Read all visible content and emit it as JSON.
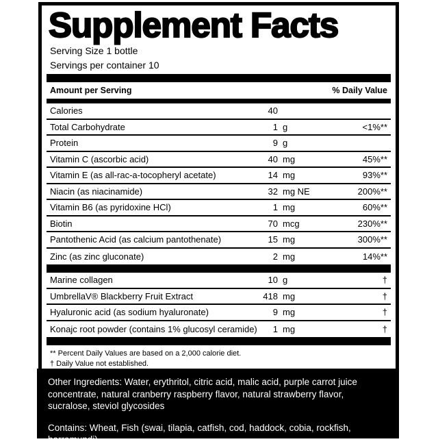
{
  "label": {
    "title": "Supplement Facts",
    "serving_size": "Serving Size 1 bottle",
    "servings_per_container": "Servings per container 10",
    "columns": {
      "amount": "Amount per Serving",
      "daily_value": "% Daily Value"
    },
    "rows": [
      {
        "name": "Calories",
        "amount": "40",
        "unit": "",
        "dv": ""
      },
      {
        "name": "Total Carbohydrate",
        "amount": "1",
        "unit": "g",
        "dv": "<1%**"
      },
      {
        "name": "Protein",
        "amount": "9",
        "unit": "g",
        "dv": ""
      },
      {
        "name": "Vitamin C (ascorbic acid)",
        "amount": "40",
        "unit": "mg",
        "dv": "45%**"
      },
      {
        "name": "Vitamin E (as all-rac-a-tocopheryl acetate)",
        "amount": "14",
        "unit": "mg",
        "dv": "93%**"
      },
      {
        "name": "Niacin (as niacinamide)",
        "amount": "32",
        "unit": "mg NE",
        "dv": "200%**"
      },
      {
        "name": "Vitamin B6 (as pyridoxine HCl)",
        "amount": "1",
        "unit": "mg",
        "dv": "60%**"
      },
      {
        "name": "Biotin",
        "amount": "70",
        "unit": "mcg",
        "dv": "230%**"
      },
      {
        "name": "Pantothenic Acid (as calcium pantothenate)",
        "amount": "15",
        "unit": "mg",
        "dv": "300%**"
      },
      {
        "name": "Zinc (as zinc gluconate)",
        "amount": "2",
        "unit": "mg",
        "dv": "14%**"
      }
    ],
    "rows2": [
      {
        "name": "Marine collagen",
        "amount": "10",
        "unit": "g",
        "dv": "†"
      },
      {
        "name": "UmbrellaV® Blackberry Fruit Extract",
        "amount": "418",
        "unit": "mg",
        "dv": "†"
      },
      {
        "name": "Hyaluronic acid (as sodium hyaluronate)",
        "amount": "9",
        "unit": "mg",
        "dv": "†"
      },
      {
        "name": "Konajc root powder (contains 1% glucosyl ceramide)",
        "amount": "1",
        "unit": "mg",
        "dv": "†"
      }
    ],
    "footnotes": [
      "** Percent Daily Values are based on a 2,000 calorie diet.",
      "† Daily Value not established."
    ]
  },
  "footer": {
    "other_ingredients": "Other Ingredients: Water, erythritol, citric acid, malic acid, purple carrot juice concentrate, natural cranberry raspberry flavor, natural strawberry flavor, sucralose, steviol glycosides",
    "contains": "Contains: Wheat, Fish (swai, tilapia, catfish, cod, haddock, cobia, rockfish, barramundi)"
  },
  "colors": {
    "panel_border": "#000000",
    "footer_background": "#000000",
    "text": "#000000",
    "footer_text": "#ffffff"
  }
}
